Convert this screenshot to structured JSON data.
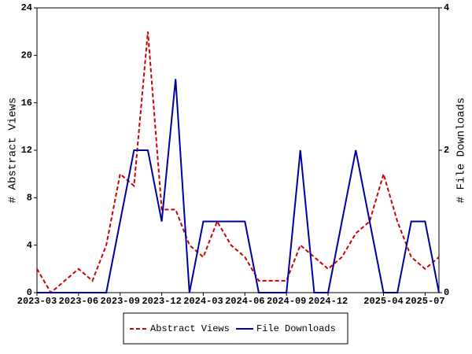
{
  "chart_data": {
    "type": "line",
    "x": [
      "2023-03",
      "2023-04",
      "2023-05",
      "2023-06",
      "2023-07",
      "2023-08",
      "2023-09",
      "2023-10",
      "2023-11",
      "2023-12",
      "2024-01",
      "2024-02",
      "2024-03",
      "2024-04",
      "2024-05",
      "2024-06",
      "2024-07",
      "2024-08",
      "2024-09",
      "2024-10",
      "2024-11",
      "2024-12",
      "2025-01",
      "2025-02",
      "2025-03",
      "2025-04",
      "2025-05",
      "2025-06",
      "2025-07",
      "2025-08"
    ],
    "xticks": [
      "2023-03",
      "2023-06",
      "2023-09",
      "2023-12",
      "2024-03",
      "2024-06",
      "2024-09",
      "2024-12",
      "2025-04",
      "2025-07"
    ],
    "ylabel": "# Abstract Views",
    "y2label": "# File Downloads",
    "ylim": [
      0,
      24
    ],
    "yticks": [
      0,
      4,
      8,
      12,
      16,
      20,
      24
    ],
    "y2lim": [
      0,
      4
    ],
    "y2ticks": [
      0,
      2,
      4
    ],
    "legend": "bottom",
    "series": [
      {
        "name": "Abstract Views",
        "color": "#cc0000",
        "dash": true,
        "axis": "y",
        "values": [
          2,
          0,
          1,
          2,
          1,
          4,
          10,
          9,
          22,
          7,
          7,
          4,
          3,
          6,
          4,
          3,
          1,
          1,
          1,
          4,
          3,
          2,
          3,
          5,
          6,
          10,
          6,
          3,
          2,
          3
        ]
      },
      {
        "name": "File Downloads",
        "color": "#0000a0",
        "dash": false,
        "axis": "y2",
        "values": [
          0,
          0,
          0,
          0,
          0,
          0,
          1,
          2,
          2,
          1,
          3,
          0,
          1,
          1,
          1,
          1,
          0,
          0,
          0,
          2,
          0,
          0,
          1,
          2,
          1,
          0,
          0,
          1,
          1,
          0
        ]
      }
    ]
  }
}
